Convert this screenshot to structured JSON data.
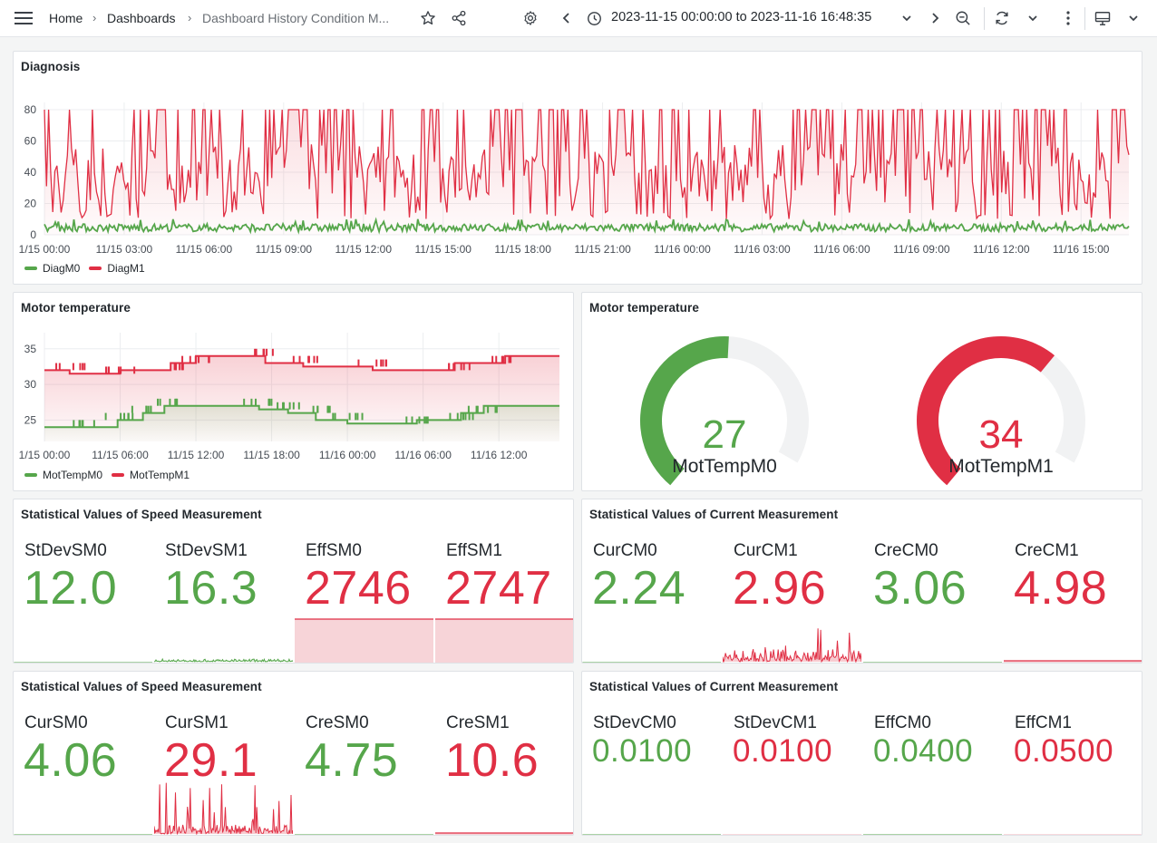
{
  "topbar": {
    "menu_icon": "hamburger-menu-icon",
    "breadcrumb": [
      "Home",
      "Dashboards",
      "Dashboard History Condition M..."
    ],
    "breadcrumb_separator": "›",
    "star_icon": "star-icon",
    "share_icon": "share-icon",
    "settings_icon": "gear-icon",
    "time_range": "2023-11-15 00:00:00 to 2023-11-16 16:48:35",
    "icons": [
      "chevron-left-icon",
      "clock-icon",
      "chevron-down-icon",
      "chevron-right-icon",
      "zoom-out-icon",
      "refresh-icon",
      "chevron-down-icon",
      "more-vertical-icon",
      "monitor-icon",
      "chevron-down-icon"
    ]
  },
  "colors": {
    "green": "#56a64b",
    "red": "#e02f44"
  },
  "diagnosis": {
    "title": "Diagnosis",
    "legend": [
      "DiagM0",
      "DiagM1"
    ]
  },
  "motor_temp_chart": {
    "title": "Motor temperature",
    "legend": [
      "MotTempM0",
      "MotTempM1"
    ]
  },
  "motor_temp_gauges": {
    "title": "Motor temperature",
    "gauges": [
      {
        "label": "MotTempM0",
        "value": "27",
        "fraction": 0.55,
        "color": "green"
      },
      {
        "label": "MotTempM1",
        "value": "34",
        "fraction": 0.69,
        "color": "red"
      }
    ]
  },
  "speed_stats_1": {
    "title": "Statistical Values of Speed Measurement",
    "cells": [
      {
        "label": "StDevSM0",
        "value": "12.0",
        "color": "green"
      },
      {
        "label": "StDevSM1",
        "value": "16.3",
        "color": "green"
      },
      {
        "label": "EffSM0",
        "value": "2746",
        "color": "red"
      },
      {
        "label": "EffSM1",
        "value": "2747",
        "color": "red"
      }
    ]
  },
  "current_stats_1": {
    "title": "Statistical Values of Current Measurement",
    "cells": [
      {
        "label": "CurCM0",
        "value": "2.24",
        "color": "green"
      },
      {
        "label": "CurCM1",
        "value": "2.96",
        "color": "red"
      },
      {
        "label": "CreCM0",
        "value": "3.06",
        "color": "green"
      },
      {
        "label": "CreCM1",
        "value": "4.98",
        "color": "red"
      }
    ]
  },
  "speed_stats_2": {
    "title": "Statistical Values of Speed Measurement",
    "cells": [
      {
        "label": "CurSM0",
        "value": "4.06",
        "color": "green"
      },
      {
        "label": "CurSM1",
        "value": "29.1",
        "color": "red"
      },
      {
        "label": "CreSM0",
        "value": "4.75",
        "color": "green"
      },
      {
        "label": "CreSM1",
        "value": "10.6",
        "color": "red"
      }
    ]
  },
  "current_stats_2": {
    "title": "Statistical Values of Current Measurement",
    "cells": [
      {
        "label": "StDevCM0",
        "value": "0.0100",
        "color": "green"
      },
      {
        "label": "StDevCM1",
        "value": "0.0100",
        "color": "red"
      },
      {
        "label": "EffCM0",
        "value": "0.0400",
        "color": "green"
      },
      {
        "label": "EffCM1",
        "value": "0.0500",
        "color": "red"
      }
    ]
  },
  "chart_data": [
    {
      "type": "line",
      "title": "Diagnosis",
      "x_ticks": [
        "1/15 00:00",
        "11/15 03:00",
        "11/15 06:00",
        "11/15 09:00",
        "11/15 12:00",
        "11/15 15:00",
        "11/15 18:00",
        "11/15 21:00",
        "11/16 00:00",
        "11/16 03:00",
        "11/16 06:00",
        "11/16 09:00",
        "11/16 12:00",
        "11/16 15:00"
      ],
      "y_ticks": [
        "0",
        "20",
        "40",
        "60",
        "80"
      ],
      "ylim": [
        0,
        80
      ],
      "xlim": [
        0,
        40.8
      ],
      "series": [
        {
          "name": "DiagM0",
          "color": "#56a64b",
          "min": 2,
          "max": 7,
          "pattern": "noise"
        },
        {
          "name": "DiagM1",
          "color": "#e02f44",
          "min": 10,
          "max": 80,
          "pattern": "oscillating"
        }
      ],
      "legend_position": "bottom-left"
    },
    {
      "type": "line",
      "title": "Motor temperature",
      "x_ticks": [
        "1/15 00:00",
        "11/15 06:00",
        "11/15 12:00",
        "11/15 18:00",
        "11/16 00:00",
        "11/16 06:00",
        "11/16 12:00"
      ],
      "x_tick_hours": [
        0,
        6,
        12,
        18,
        24,
        30,
        36
      ],
      "y_ticks": [
        "25",
        "30",
        "35"
      ],
      "ylim": [
        22,
        36.5
      ],
      "xlim": [
        0,
        40.8
      ],
      "series": [
        {
          "name": "MotTempM0",
          "color": "#56a64b",
          "points": [
            [
              0,
              24
            ],
            [
              3,
              24
            ],
            [
              5.8,
              24
            ],
            [
              5.8,
              25
            ],
            [
              7.8,
              25
            ],
            [
              7.8,
              26
            ],
            [
              9.5,
              26
            ],
            [
              9.5,
              27
            ],
            [
              14,
              27
            ],
            [
              17,
              27
            ],
            [
              17,
              26.5
            ],
            [
              19.3,
              26.5
            ],
            [
              19.3,
              26
            ],
            [
              21.5,
              26
            ],
            [
              21.5,
              25
            ],
            [
              24,
              25
            ],
            [
              24,
              24.5
            ],
            [
              29.5,
              24.5
            ],
            [
              29.5,
              25
            ],
            [
              33,
              25
            ],
            [
              33,
              26
            ],
            [
              34.8,
              26
            ],
            [
              34.8,
              27
            ],
            [
              40.8,
              27
            ]
          ]
        },
        {
          "name": "MotTempM1",
          "color": "#e02f44",
          "points": [
            [
              0,
              32
            ],
            [
              2,
              32
            ],
            [
              2,
              31.5
            ],
            [
              6,
              31.5
            ],
            [
              6,
              32
            ],
            [
              10,
              32
            ],
            [
              10,
              33
            ],
            [
              12,
              33
            ],
            [
              12,
              34
            ],
            [
              17.5,
              34
            ],
            [
              17.5,
              33
            ],
            [
              20.5,
              33
            ],
            [
              20.5,
              32.5
            ],
            [
              26,
              32.5
            ],
            [
              26,
              32
            ],
            [
              32.5,
              32
            ],
            [
              32.5,
              33
            ],
            [
              36.5,
              33
            ],
            [
              36.5,
              34
            ],
            [
              40.8,
              34
            ]
          ]
        }
      ],
      "legend_position": "bottom-left"
    }
  ]
}
